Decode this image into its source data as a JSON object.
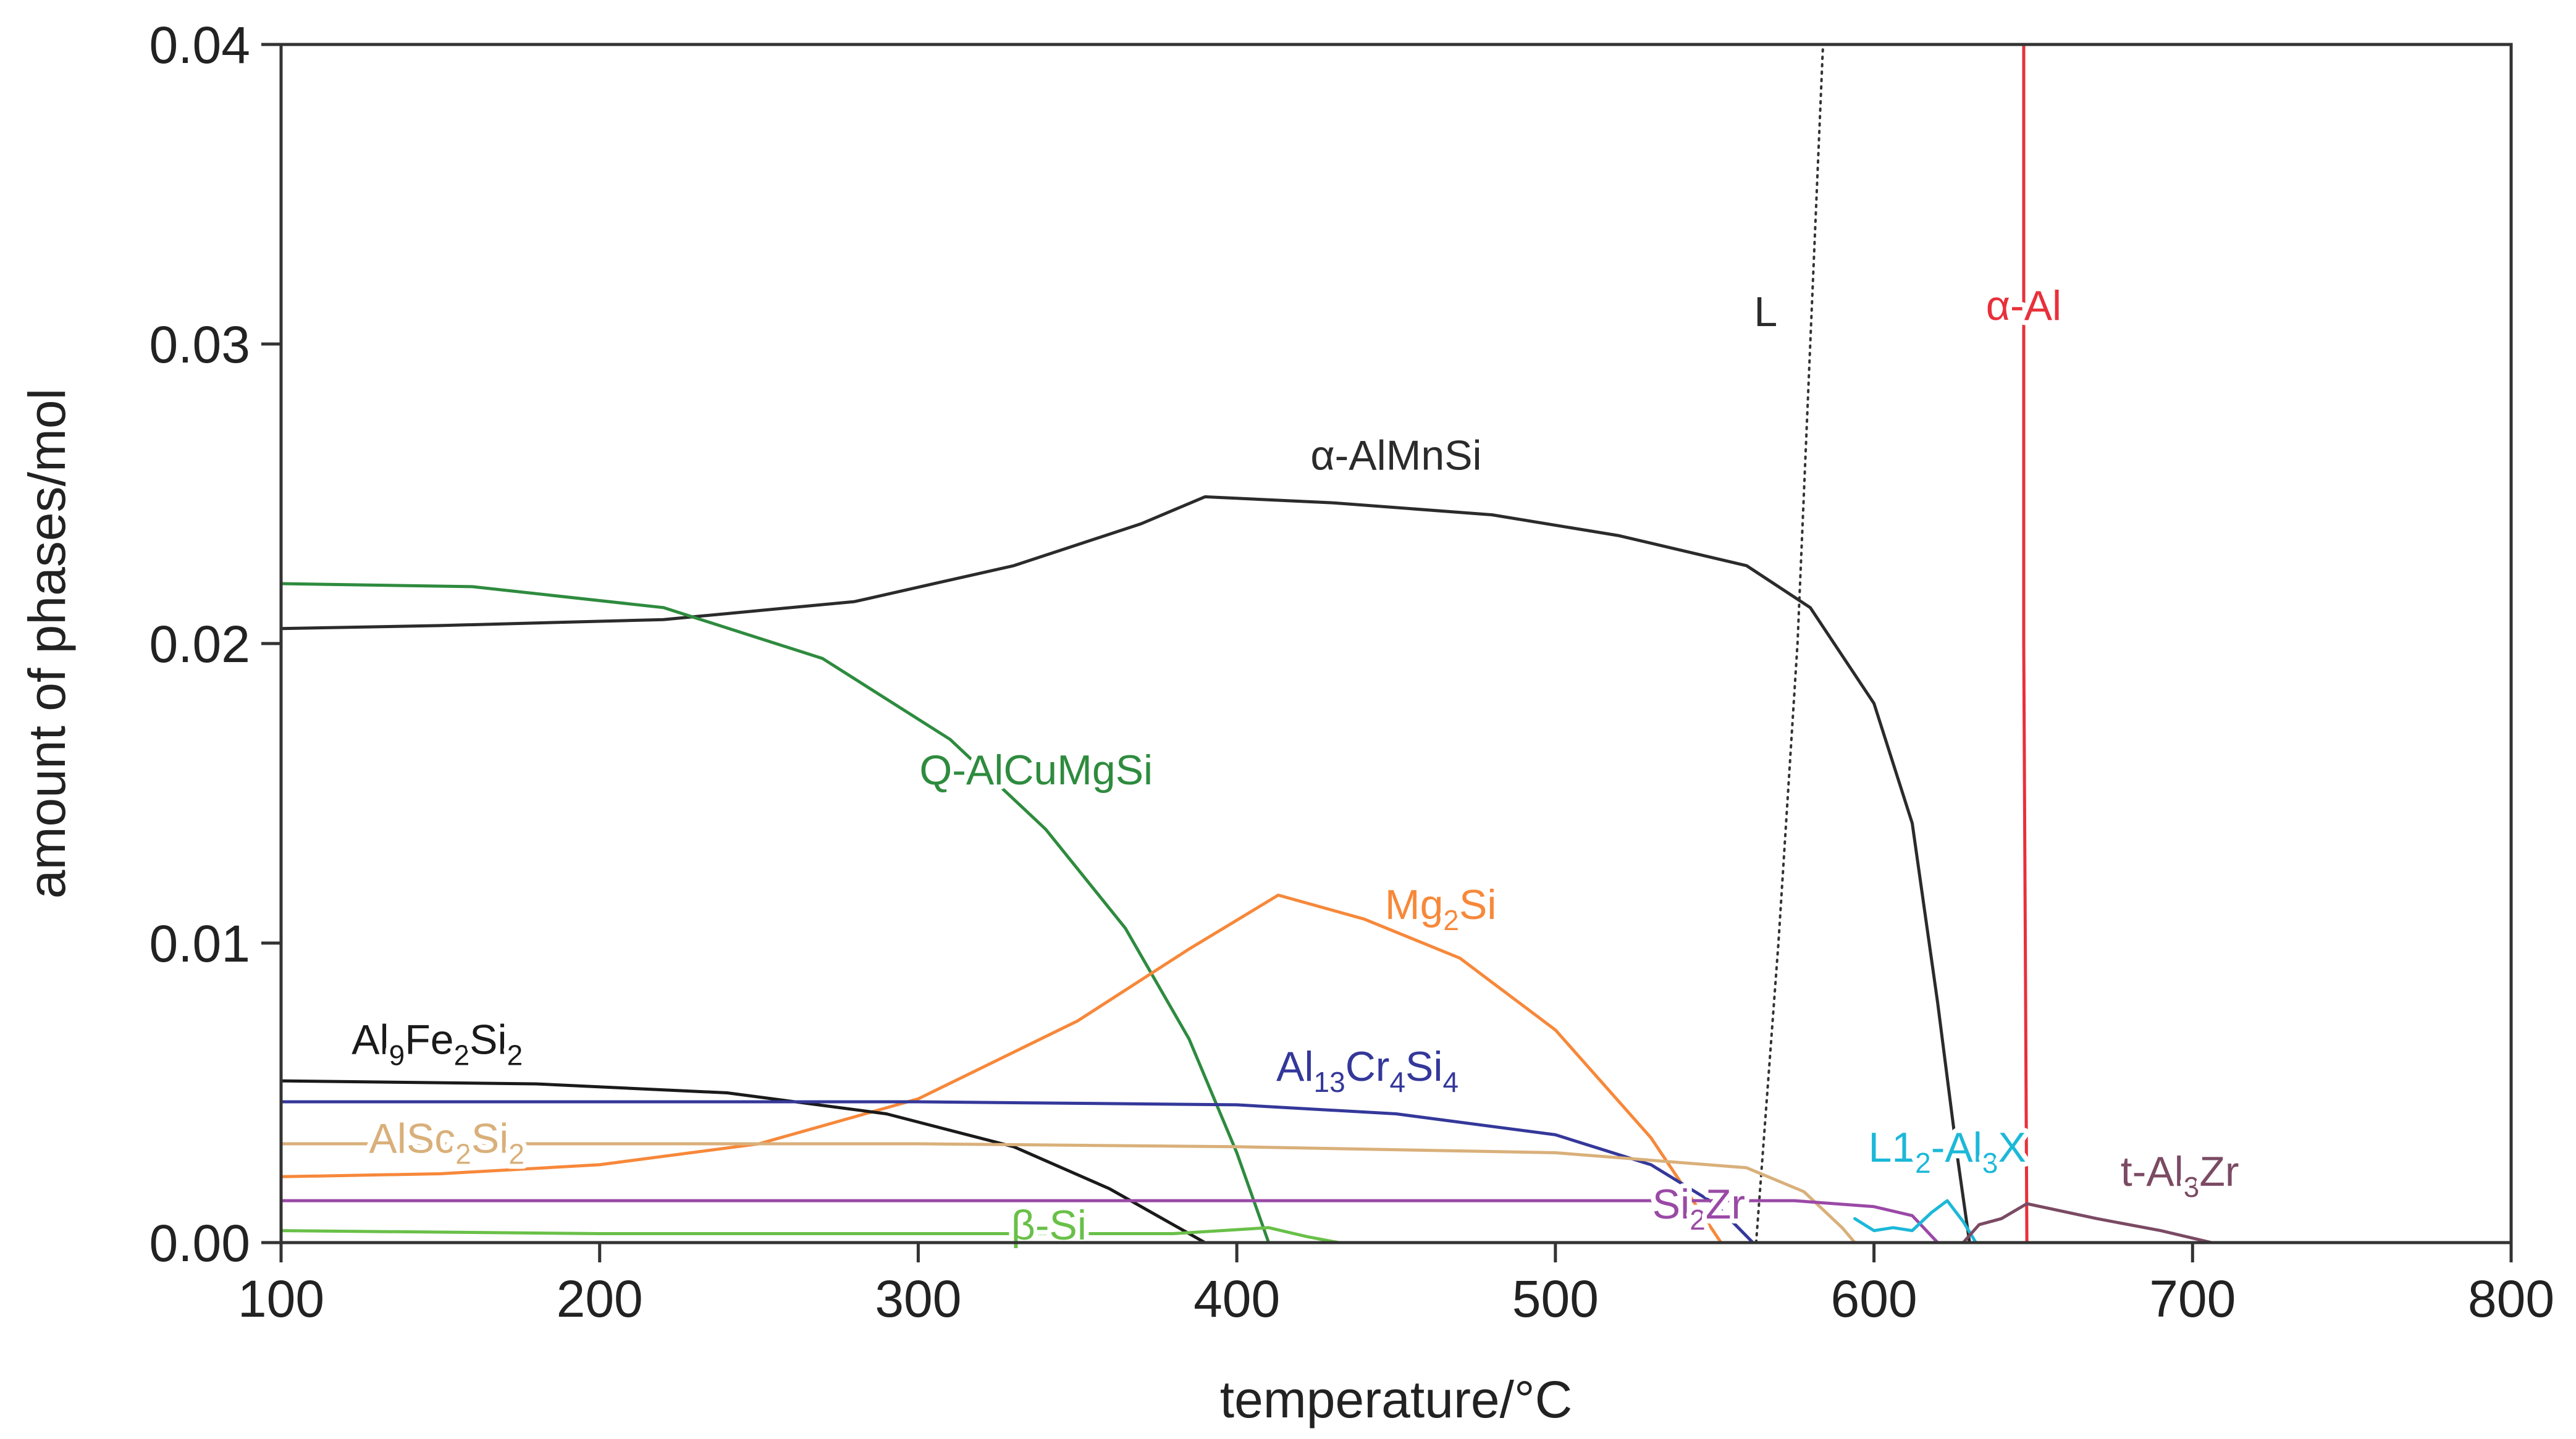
{
  "chart_data": {
    "type": "line",
    "title": "",
    "xlabel": "temperature/°C",
    "ylabel": "amount of phases/mol",
    "xlim": [
      100,
      800
    ],
    "ylim": [
      0,
      0.04
    ],
    "grid": false,
    "x_ticks": [
      100,
      200,
      300,
      400,
      500,
      600,
      700,
      800
    ],
    "x_tick_labels": [
      "100",
      "200",
      "300",
      "400",
      "500",
      "600",
      "700",
      "800"
    ],
    "y_ticks": [
      0,
      0.01,
      0.02,
      0.03,
      0.04
    ],
    "y_tick_labels": [
      "0.00",
      "0.01",
      "0.02",
      "0.03",
      "0.04"
    ],
    "series": [
      {
        "name": "α-AlMnSi",
        "color": "#2b2b2b",
        "style": "solid",
        "points": [
          [
            100,
            0.0205
          ],
          [
            150,
            0.0206
          ],
          [
            220,
            0.0208
          ],
          [
            280,
            0.0214
          ],
          [
            330,
            0.0226
          ],
          [
            370,
            0.024
          ],
          [
            390,
            0.0249
          ],
          [
            430,
            0.0247
          ],
          [
            480,
            0.0243
          ],
          [
            520,
            0.0236
          ],
          [
            560,
            0.0226
          ],
          [
            580,
            0.0212
          ],
          [
            600,
            0.018
          ],
          [
            612,
            0.014
          ],
          [
            620,
            0.008
          ],
          [
            626,
            0.003
          ],
          [
            630,
            0.0
          ]
        ]
      },
      {
        "name": "L",
        "color": "#333333",
        "style": "dotted",
        "points": [
          [
            563,
            0.0
          ],
          [
            570,
            0.01
          ],
          [
            576,
            0.02
          ],
          [
            580,
            0.03
          ],
          [
            584,
            0.04
          ]
        ]
      },
      {
        "name": "α-Al",
        "color": "#e8303a",
        "style": "solid",
        "points": [
          [
            647,
            0.04
          ],
          [
            647,
            0.02
          ],
          [
            648,
            0.0
          ]
        ]
      },
      {
        "name": "Q-AlCuMgSi",
        "color": "#2e8b3e",
        "style": "solid",
        "points": [
          [
            100,
            0.022
          ],
          [
            160,
            0.0219
          ],
          [
            220,
            0.0212
          ],
          [
            270,
            0.0195
          ],
          [
            310,
            0.0168
          ],
          [
            340,
            0.0138
          ],
          [
            365,
            0.0105
          ],
          [
            385,
            0.0068
          ],
          [
            400,
            0.003
          ],
          [
            410,
            0.0
          ]
        ]
      },
      {
        "name": "Mg₂Si",
        "color": "#f7883a",
        "style": "solid",
        "points": [
          [
            100,
            0.0022
          ],
          [
            150,
            0.0023
          ],
          [
            200,
            0.0026
          ],
          [
            250,
            0.0033
          ],
          [
            300,
            0.0048
          ],
          [
            350,
            0.0074
          ],
          [
            385,
            0.0098
          ],
          [
            413,
            0.0116
          ],
          [
            440,
            0.0108
          ],
          [
            470,
            0.0095
          ],
          [
            500,
            0.0071
          ],
          [
            530,
            0.0035
          ],
          [
            552,
            0.0
          ]
        ]
      },
      {
        "name": "Al₉Fe₂Si₂",
        "color": "#1a1a1a",
        "style": "solid",
        "points": [
          [
            100,
            0.0054
          ],
          [
            180,
            0.0053
          ],
          [
            240,
            0.005
          ],
          [
            290,
            0.0043
          ],
          [
            330,
            0.0032
          ],
          [
            360,
            0.0018
          ],
          [
            390,
            0.0
          ]
        ]
      },
      {
        "name": "Al₁₃Cr₄Si₄",
        "color": "#34389a",
        "style": "solid",
        "points": [
          [
            100,
            0.0047
          ],
          [
            200,
            0.0047
          ],
          [
            300,
            0.0047
          ],
          [
            400,
            0.0046
          ],
          [
            450,
            0.0043
          ],
          [
            500,
            0.0036
          ],
          [
            530,
            0.0026
          ],
          [
            550,
            0.0013
          ],
          [
            562,
            0.0
          ]
        ]
      },
      {
        "name": "AlSc₂Si₂",
        "color": "#d9b07a",
        "style": "solid",
        "points": [
          [
            100,
            0.0033
          ],
          [
            200,
            0.0033
          ],
          [
            300,
            0.0033
          ],
          [
            400,
            0.0032
          ],
          [
            500,
            0.003
          ],
          [
            560,
            0.0025
          ],
          [
            578,
            0.0017
          ],
          [
            590,
            0.0005
          ],
          [
            594,
            0.0
          ]
        ]
      },
      {
        "name": "Si₂Zr",
        "color": "#9a49a6",
        "style": "solid",
        "points": [
          [
            100,
            0.0014
          ],
          [
            300,
            0.0014
          ],
          [
            500,
            0.0014
          ],
          [
            575,
            0.0014
          ],
          [
            600,
            0.0012
          ],
          [
            612,
            0.0009
          ],
          [
            620,
            0.0
          ]
        ]
      },
      {
        "name": "β-Si",
        "color": "#69c048",
        "style": "solid",
        "points": [
          [
            100,
            0.0004
          ],
          [
            200,
            0.0003
          ],
          [
            300,
            0.0003
          ],
          [
            380,
            0.0003
          ],
          [
            410,
            0.0005
          ],
          [
            422,
            0.0002
          ],
          [
            432,
            0.0
          ]
        ]
      },
      {
        "name": "L1₂-Al₃X",
        "color": "#1cb8d8",
        "style": "solid",
        "points": [
          [
            594,
            0.0008
          ],
          [
            600,
            0.0004
          ],
          [
            606,
            0.0005
          ],
          [
            612,
            0.0004
          ],
          [
            618,
            0.001
          ],
          [
            623,
            0.0014
          ],
          [
            628,
            0.0007
          ],
          [
            632,
            0.0
          ]
        ]
      },
      {
        "name": "t-Al₃Zr",
        "color": "#7b4a63",
        "style": "solid",
        "points": [
          [
            628,
            0.0
          ],
          [
            633,
            0.0006
          ],
          [
            640,
            0.0008
          ],
          [
            648,
            0.0013
          ],
          [
            670,
            0.0008
          ],
          [
            690,
            0.0004
          ],
          [
            706,
            0.0
          ]
        ]
      }
    ],
    "annotations": [
      {
        "label": "α-AlMnSi",
        "x": 450,
        "y": 0.0258,
        "color": "#2b2b2b",
        "parts": [
          {
            "t": "α-AlMnSi",
            "s": 0
          }
        ]
      },
      {
        "label": "L",
        "x": 566,
        "y": 0.0306,
        "color": "#2b2b2b",
        "parts": [
          {
            "t": "L",
            "s": 0
          }
        ]
      },
      {
        "label": "α-Al",
        "x": 647,
        "y": 0.0308,
        "color": "#e8303a",
        "parts": [
          {
            "t": "α-Al",
            "s": 0
          }
        ]
      },
      {
        "label": "Q-AlCuMgSi",
        "x": 337,
        "y": 0.0153,
        "color": "#2e8b3e",
        "parts": [
          {
            "t": "Q-AlCuMgSi",
            "s": 0
          }
        ]
      },
      {
        "label": "Mg2Si",
        "x": 464,
        "y": 0.0108,
        "color": "#f7883a",
        "parts": [
          {
            "t": "Mg",
            "s": 0
          },
          {
            "t": "2",
            "s": 1
          },
          {
            "t": "Si",
            "s": 0
          }
        ]
      },
      {
        "label": "Al9Fe2Si2",
        "x": 149,
        "y": 0.0063,
        "color": "#1a1a1a",
        "parts": [
          {
            "t": "Al",
            "s": 0
          },
          {
            "t": "9",
            "s": 1
          },
          {
            "t": "Fe",
            "s": 0
          },
          {
            "t": "2",
            "s": 1
          },
          {
            "t": "Si",
            "s": 0
          },
          {
            "t": "2",
            "s": 1
          }
        ]
      },
      {
        "label": "Al13Cr4Si4",
        "x": 441,
        "y": 0.0054,
        "color": "#34389a",
        "parts": [
          {
            "t": "Al",
            "s": 0
          },
          {
            "t": "13",
            "s": 1
          },
          {
            "t": "Cr",
            "s": 0
          },
          {
            "t": "4",
            "s": 1
          },
          {
            "t": "Si",
            "s": 0
          },
          {
            "t": "4",
            "s": 1
          }
        ]
      },
      {
        "label": "AlSc2Si2",
        "x": 152,
        "y": 0.003,
        "color": "#d9b07a",
        "parts": [
          {
            "t": "AlSc",
            "s": 0
          },
          {
            "t": "2",
            "s": 1
          },
          {
            "t": "Si",
            "s": 0
          },
          {
            "t": "2",
            "s": 1
          }
        ]
      },
      {
        "label": "β-Si",
        "x": 341,
        "y": 0.0001,
        "color": "#69c048",
        "parts": [
          {
            "t": "β-Si",
            "s": 0
          }
        ]
      },
      {
        "label": "Si2Zr",
        "x": 545,
        "y": 0.0008,
        "color": "#9a49a6",
        "parts": [
          {
            "t": "Si",
            "s": 0
          },
          {
            "t": "2",
            "s": 1
          },
          {
            "t": "Zr",
            "s": 0
          }
        ]
      },
      {
        "label": "L12-Al3X",
        "x": 623,
        "y": 0.0027,
        "color": "#1cb8d8",
        "parts": [
          {
            "t": "L1",
            "s": 0
          },
          {
            "t": "2",
            "s": 1
          },
          {
            "t": "-Al",
            "s": 0
          },
          {
            "t": "3",
            "s": 1
          },
          {
            "t": "X",
            "s": 0
          }
        ]
      },
      {
        "label": "t-Al3Zr",
        "x": 696,
        "y": 0.0019,
        "color": "#7b4a63",
        "parts": [
          {
            "t": "t-Al",
            "s": 0
          },
          {
            "t": "3",
            "s": 1
          },
          {
            "t": "Zr",
            "s": 0
          }
        ]
      }
    ]
  }
}
